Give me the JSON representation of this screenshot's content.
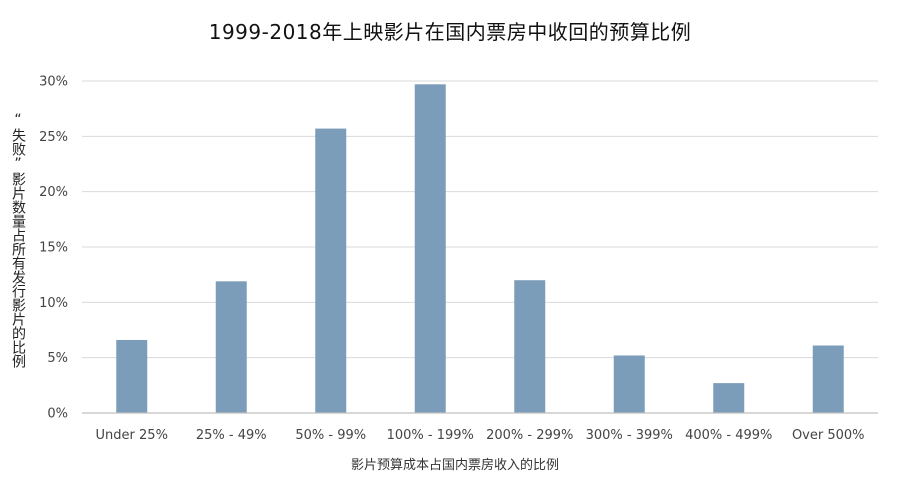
{
  "chart_data": {
    "type": "bar",
    "title": "1999-2018年上映影片在国内票房中收回的预算比例",
    "xlabel": "影片预算成本占国内票房收入的比例",
    "ylabel": "“失败”影片数量占所有发行影片的比例",
    "categories": [
      "Under 25%",
      "25% - 49%",
      "50% - 99%",
      "100% - 199%",
      "200% - 299%",
      "300% - 399%",
      "400% - 499%",
      "Over 500%"
    ],
    "values": [
      6.6,
      11.9,
      25.7,
      29.7,
      12.0,
      5.2,
      2.7,
      6.1
    ],
    "ylim": [
      0,
      30
    ],
    "yticks": [
      0,
      5,
      10,
      15,
      20,
      25,
      30
    ],
    "ytick_labels": [
      "0%",
      "5%",
      "10%",
      "15%",
      "20%",
      "25%",
      "30%"
    ],
    "grid": true,
    "legend": "none",
    "colors": {
      "bar": "#7b9db9",
      "grid": "#d9d9d9",
      "axis": "#bfbfbf"
    }
  }
}
